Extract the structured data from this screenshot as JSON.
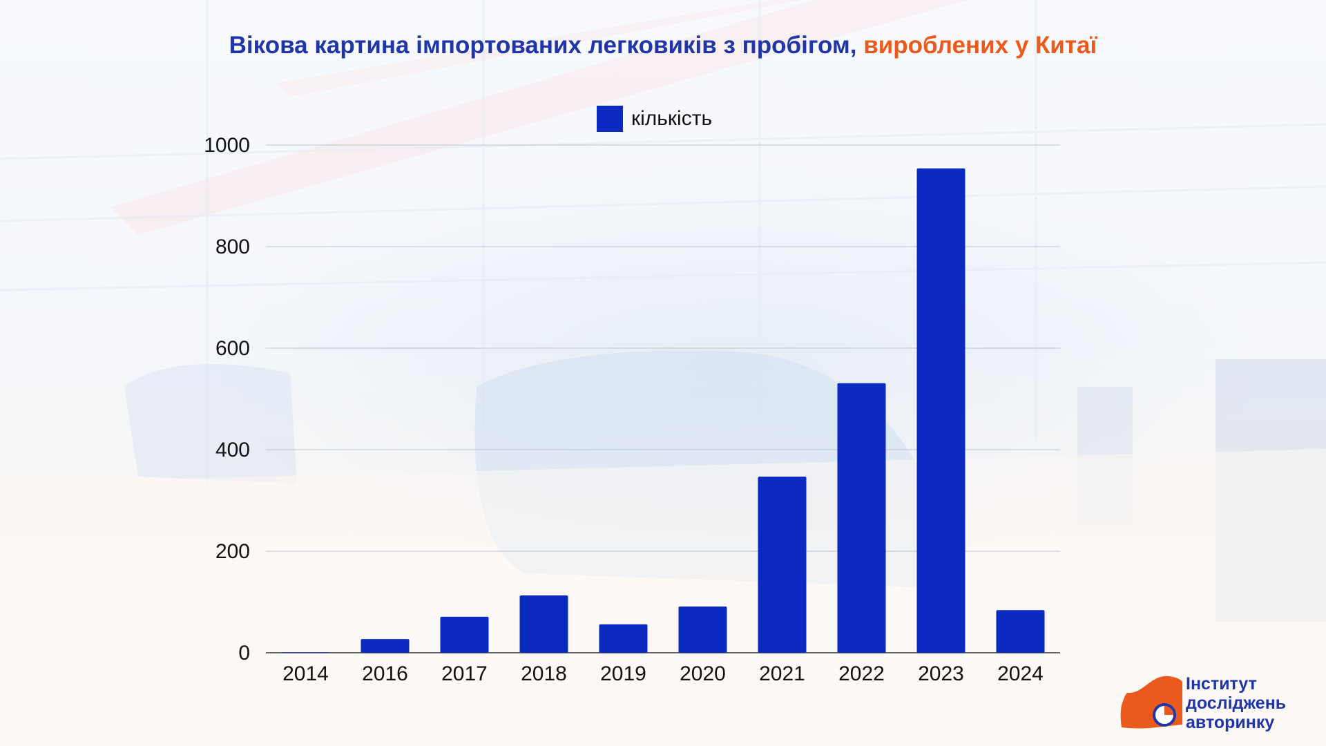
{
  "title": {
    "part1": "Вікова картина імпортованих легковиків з пробігом, ",
    "part2": "вироблених у Китаї"
  },
  "colors": {
    "title_primary": "#1f35a8",
    "title_accent": "#e95a1c",
    "bar": "#0b2ac0",
    "logo_orange": "#e95a1c"
  },
  "logo": {
    "line1": "Інститут",
    "line2": "досліджень",
    "line3": "авторинку"
  },
  "chart_data": {
    "type": "bar",
    "categories": [
      "2014",
      "2016",
      "2017",
      "2018",
      "2019",
      "2020",
      "2021",
      "2022",
      "2023",
      "2024"
    ],
    "series": [
      {
        "name": "кількість",
        "values": [
          1,
          27,
          71,
          113,
          56,
          91,
          347,
          531,
          954,
          84
        ]
      }
    ],
    "ylim": [
      0,
      1000
    ],
    "yticks": [
      0,
      200,
      400,
      600,
      800,
      1000
    ],
    "grid": true,
    "legend_position": "top-center"
  }
}
